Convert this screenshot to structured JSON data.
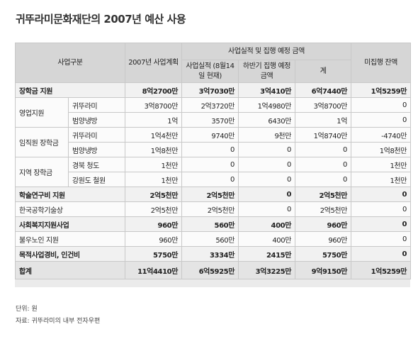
{
  "title": "귀뚜라미문화재단의 2007년 예산 사용",
  "headers": {
    "category": "사업구분",
    "plan": "2007년 사업계획",
    "group": "사업실적 및 집행 예정 금액",
    "actual": "사업실적 (8월14일 현재)",
    "second_half": "하반기 집행 예정 금액",
    "sum": "계",
    "balance": "미집행 잔액"
  },
  "rows": [
    {
      "main": "장학금 지원",
      "sub": "",
      "plan": "8억2700만",
      "actual": "3억7030만",
      "second": "3억410만",
      "sum": "6억7440만",
      "balance": "1억5259만"
    },
    {
      "main": "영업지원",
      "sub": "귀뚜라미",
      "plan": "3억8700만",
      "actual": "2억3720만",
      "second": "1억4980만",
      "sum": "3억8700만",
      "balance": "0"
    },
    {
      "main": "",
      "sub": "범양냉방",
      "plan": "1억",
      "actual": "3570만",
      "second": "6430만",
      "sum": "1억",
      "balance": "0"
    },
    {
      "main": "임직원 장학금",
      "sub": "귀뚜라미",
      "plan": "1억4천만",
      "actual": "9740만",
      "second": "9천만",
      "sum": "1억8740만",
      "balance": "-4740만"
    },
    {
      "main": "",
      "sub": "범양냉방",
      "plan": "1억8천만",
      "actual": "0",
      "second": "0",
      "sum": "0",
      "balance": "1억8천만"
    },
    {
      "main": "지역 장학금",
      "sub": "경북 청도",
      "plan": "1천만",
      "actual": "0",
      "second": "0",
      "sum": "0",
      "balance": "1천만"
    },
    {
      "main": "",
      "sub": "강원도 철원",
      "plan": "1천만",
      "actual": "0",
      "second": "0",
      "sum": "0",
      "balance": "1천만"
    },
    {
      "main": "학술연구비 지원",
      "sub": "",
      "plan": "2억5천만",
      "actual": "2억5천만",
      "second": "0",
      "sum": "2억5천만",
      "balance": "0"
    },
    {
      "main": "한국공학기술상",
      "sub": "",
      "plan": "2억5천만",
      "actual": "2억5천만",
      "second": "0",
      "sum": "2억5천만",
      "balance": "0"
    },
    {
      "main": "사회복지지원사업",
      "sub": "",
      "plan": "960만",
      "actual": "560만",
      "second": "400만",
      "sum": "960만",
      "balance": "0"
    },
    {
      "main": "불우노인 지원",
      "sub": "",
      "plan": "960만",
      "actual": "560만",
      "second": "400만",
      "sum": "960만",
      "balance": "0"
    },
    {
      "main": "목적사업경비, 인건비",
      "sub": "",
      "plan": "5750만",
      "actual": "3334만",
      "second": "2415만",
      "sum": "5750만",
      "balance": "0"
    },
    {
      "main": "합계",
      "sub": "",
      "plan": "11억4410만",
      "actual": "6억5925만",
      "second": "3억3225만",
      "sum": "9억9150만",
      "balance": "1억5259만"
    }
  ],
  "notes": {
    "unit": "단위: 원",
    "source": "자료: 귀뚜라미의 내부 전자우편"
  }
}
